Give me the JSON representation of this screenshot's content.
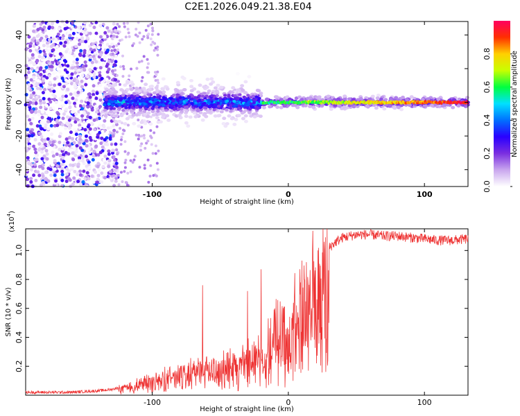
{
  "title": "C2E1.2026.049.21.38.E04",
  "chart_data": [
    {
      "type": "heatmap",
      "title": "C2E1.2026.049.21.38.E04",
      "xlabel": "Height of straight line (km)",
      "ylabel": "Frequency (Hz)",
      "xlim": [
        -193,
        132
      ],
      "ylim": [
        -50,
        48
      ],
      "xticks": [
        -100,
        0,
        100
      ],
      "xtick_labels": [
        "-100",
        "0",
        "100"
      ],
      "yticks": [
        -40,
        -20,
        0,
        20,
        40
      ],
      "ytick_labels": [
        "-40",
        "-20",
        "0",
        "20",
        "40"
      ],
      "colorbar": {
        "label": "Normalized spectral amplitude",
        "range": [
          0.0,
          1.0
        ],
        "ticks": [
          0.0,
          0.2,
          0.4,
          0.6,
          0.8
        ],
        "tick_labels": [
          "0.0",
          "0.2",
          "0.4",
          "0.6",
          "0.8"
        ],
        "colors": [
          "#ffffff",
          "#c9a6ee",
          "#7a2ee0",
          "#2a00ff",
          "#0070ff",
          "#00e0ff",
          "#00ff40",
          "#c8ff00",
          "#ffd000",
          "#ff3000",
          "#ff0060"
        ]
      },
      "description_regions": [
        {
          "x_range": [
            -193,
            -125
          ],
          "freq_spread": 48,
          "amplitude": 0.2
        },
        {
          "x_range": [
            -125,
            -20
          ],
          "freq_spread": 6,
          "amplitude": 0.4
        },
        {
          "x_range": [
            -20,
            132
          ],
          "freq_spread": 2,
          "amplitude": 0.8
        }
      ]
    },
    {
      "type": "line",
      "xlabel": "Height of straight line (km)",
      "ylabel": "SNR (10 * v/v)",
      "y_multiplier_label": "(x10",
      "y_multiplier_exp": "4",
      "y_multiplier_close": ")",
      "xlim": [
        -193,
        132
      ],
      "ylim": [
        0,
        1.15
      ],
      "xticks": [
        -100,
        0,
        100
      ],
      "xtick_labels": [
        "-100",
        "0",
        "100"
      ],
      "yticks": [
        0.2,
        0.4,
        0.6,
        0.8,
        1.0
      ],
      "ytick_labels": [
        "0.2",
        "0.4",
        "0.6",
        "0.8",
        "1.0"
      ],
      "color": "#ee3333",
      "series": [
        {
          "name": "SNR",
          "x": [
            -193,
            -180,
            -160,
            -140,
            -130,
            -120,
            -110,
            -100,
            -90,
            -80,
            -70,
            -60,
            -50,
            -40,
            -30,
            -20,
            -15,
            -10,
            -5,
            0,
            5,
            10,
            15,
            20,
            25,
            30,
            35,
            40,
            45,
            50,
            60,
            70,
            80,
            90,
            100,
            110,
            120,
            132
          ],
          "y": [
            0.02,
            0.02,
            0.02,
            0.03,
            0.04,
            0.06,
            0.09,
            0.12,
            0.15,
            0.17,
            0.2,
            0.22,
            0.23,
            0.25,
            0.3,
            0.35,
            0.42,
            0.5,
            0.55,
            0.6,
            0.65,
            0.72,
            0.8,
            0.88,
            0.95,
            1.02,
            1.06,
            1.09,
            1.1,
            1.11,
            1.11,
            1.1,
            1.1,
            1.09,
            1.08,
            1.07,
            1.07,
            1.08
          ]
        }
      ],
      "spikes": [
        {
          "x": -63,
          "y": 0.76
        },
        {
          "x": -20,
          "y": 0.87
        },
        {
          "x": -30,
          "y": 0.72
        },
        {
          "x": 10,
          "y": 0.93
        },
        {
          "x": -10,
          "y": 0.6
        }
      ]
    }
  ]
}
